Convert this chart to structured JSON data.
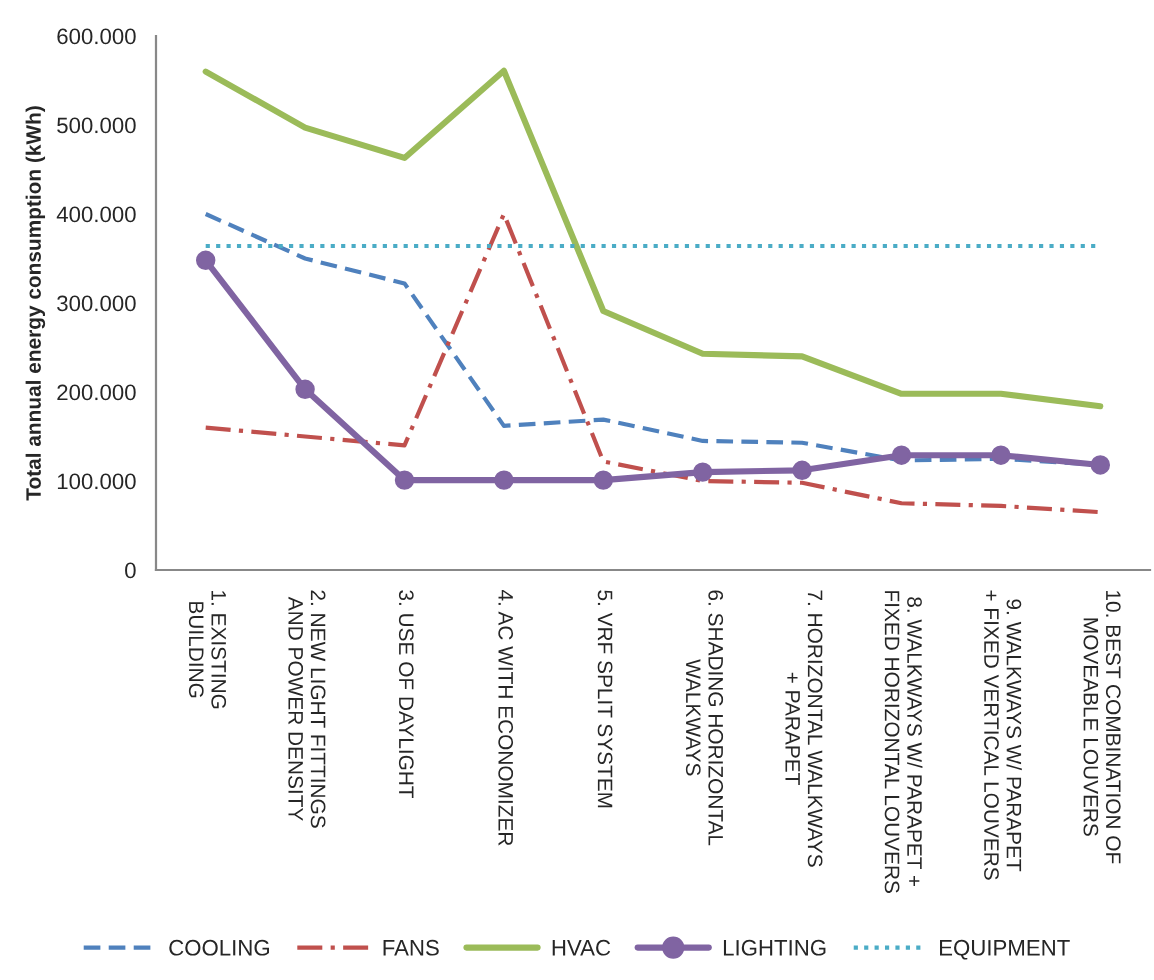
{
  "chart_data": {
    "type": "line",
    "ylabel": "Total annual energy consumption (kWh)",
    "categories": [
      "1. EXISTING\nBUILDING",
      "2. NEW LIGHT FITTINGS\nAND POWER DENSITY",
      "3. USE OF DAYLIGHT",
      "4. AC WITH ECONOMIZER",
      "5. VRF SPLIT SYSTEM",
      "6. SHADING HORIZONTAL\nWALKWAYS",
      "7. HORIZONTAL WALKWAYS\n+ PARAPET",
      "8. WALKWAYS W/ PARAPET +\nFIXED HORIZONTAL LOUVERS",
      "9. WALKWAYS W/ PARAPET\n+ FIXED VERTICAL LOUVERS",
      "10. BEST COMBINATION OF\nMOVEABLE LOUVERS"
    ],
    "series": [
      {
        "name": "COOLING",
        "color": "#4f81bd",
        "line_style": "dashed",
        "values": [
          400000,
          350000,
          322000,
          162000,
          169000,
          145000,
          143000,
          123000,
          125000,
          118000
        ]
      },
      {
        "name": "FANS",
        "color": "#c0504d",
        "line_style": "dashdot",
        "values": [
          160000,
          150000,
          140000,
          400000,
          122000,
          100000,
          98000,
          75000,
          72000,
          65000
        ]
      },
      {
        "name": "HVAC",
        "color": "#9bbb59",
        "line_style": "solid",
        "values": [
          560000,
          497000,
          463000,
          561000,
          291000,
          243000,
          240000,
          198000,
          198000,
          184000
        ]
      },
      {
        "name": "LIGHTING",
        "color": "#8064a2",
        "line_style": "solid",
        "marker": "circle",
        "values": [
          348000,
          203000,
          101000,
          101000,
          101000,
          110000,
          112000,
          129000,
          129000,
          118000
        ]
      },
      {
        "name": "EQUIPMENT",
        "color": "#4bacc6",
        "line_style": "dotted",
        "values": [
          364000,
          364000,
          364000,
          364000,
          364000,
          364000,
          364000,
          364000,
          364000,
          364000
        ]
      }
    ],
    "ylim": [
      0,
      600000
    ],
    "yticks": [
      {
        "value": 0,
        "label": "0"
      },
      {
        "value": 100000,
        "label": "100.000"
      },
      {
        "value": 200000,
        "label": "200.000"
      },
      {
        "value": 300000,
        "label": "300.000"
      },
      {
        "value": 400000,
        "label": "400.000"
      },
      {
        "value": 500000,
        "label": "500.000"
      },
      {
        "value": 600000,
        "label": "600.000"
      }
    ],
    "grid": false,
    "legend": "bottom"
  }
}
